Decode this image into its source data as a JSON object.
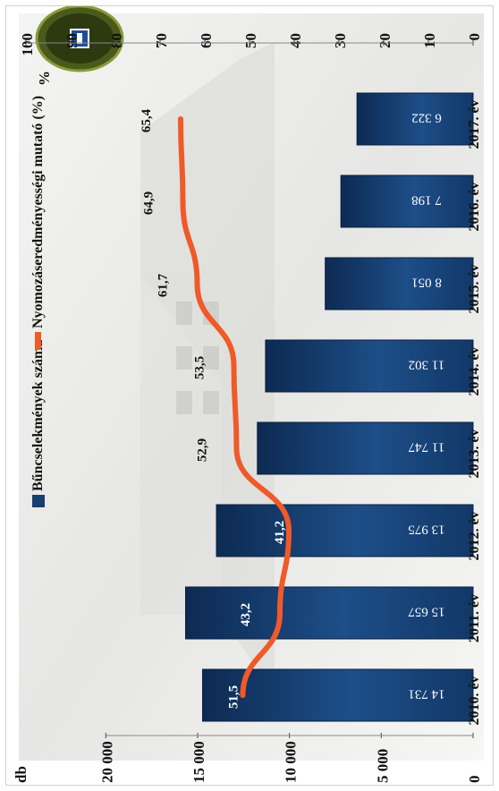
{
  "chart_data": {
    "type": "bar",
    "orientation": "rotated 90° clockwise (categories run along the page height)",
    "categories": [
      "2010. év",
      "2011. év",
      "2012. év",
      "2013. év",
      "2014. év",
      "2015. év",
      "2016. év",
      "2017. év"
    ],
    "series": [
      {
        "name": "Bűncselekmények száma",
        "type": "bar",
        "axis": "left",
        "values": [
          14731,
          15657,
          13975,
          11747,
          11302,
          8051,
          7198,
          6322
        ],
        "labels": [
          "14 731",
          "15 657",
          "13 975",
          "11 747",
          "11 302",
          "8 051",
          "7 198",
          "6 322"
        ],
        "color": "#173f73"
      },
      {
        "name": "Nyomozáseredményességi mutató (%)",
        "type": "line",
        "axis": "right",
        "values": [
          51.5,
          43.2,
          41.2,
          52.9,
          53.5,
          61.7,
          64.9,
          65.4
        ],
        "labels": [
          "51,5",
          "43,2",
          "41,2",
          "52,9",
          "53,5",
          "61,7",
          "64,9",
          "65,4"
        ],
        "color": "#ef5a28"
      }
    ],
    "left_axis": {
      "unit": "db",
      "range": [
        0,
        20000
      ],
      "tick_values": [
        0,
        5000,
        10000,
        15000,
        20000
      ],
      "tick_labels": [
        "0",
        "5 000",
        "10 000",
        "15 000",
        "20 000"
      ]
    },
    "right_axis": {
      "unit": "%",
      "range": [
        0,
        100
      ],
      "tick_values": [
        0,
        10,
        20,
        30,
        40,
        50,
        60,
        70,
        80,
        90,
        100
      ],
      "tick_labels": [
        "0",
        "10",
        "20",
        "30",
        "40",
        "50",
        "60",
        "70",
        "80",
        "90",
        "100"
      ]
    },
    "legend_placement": "top (upper-right in the rotated image)",
    "grid": false
  },
  "colors": {
    "bar": "#173f73",
    "line": "#ef5a28",
    "background": "#efefee"
  },
  "icons": {
    "badge": "police-badge-icon"
  }
}
